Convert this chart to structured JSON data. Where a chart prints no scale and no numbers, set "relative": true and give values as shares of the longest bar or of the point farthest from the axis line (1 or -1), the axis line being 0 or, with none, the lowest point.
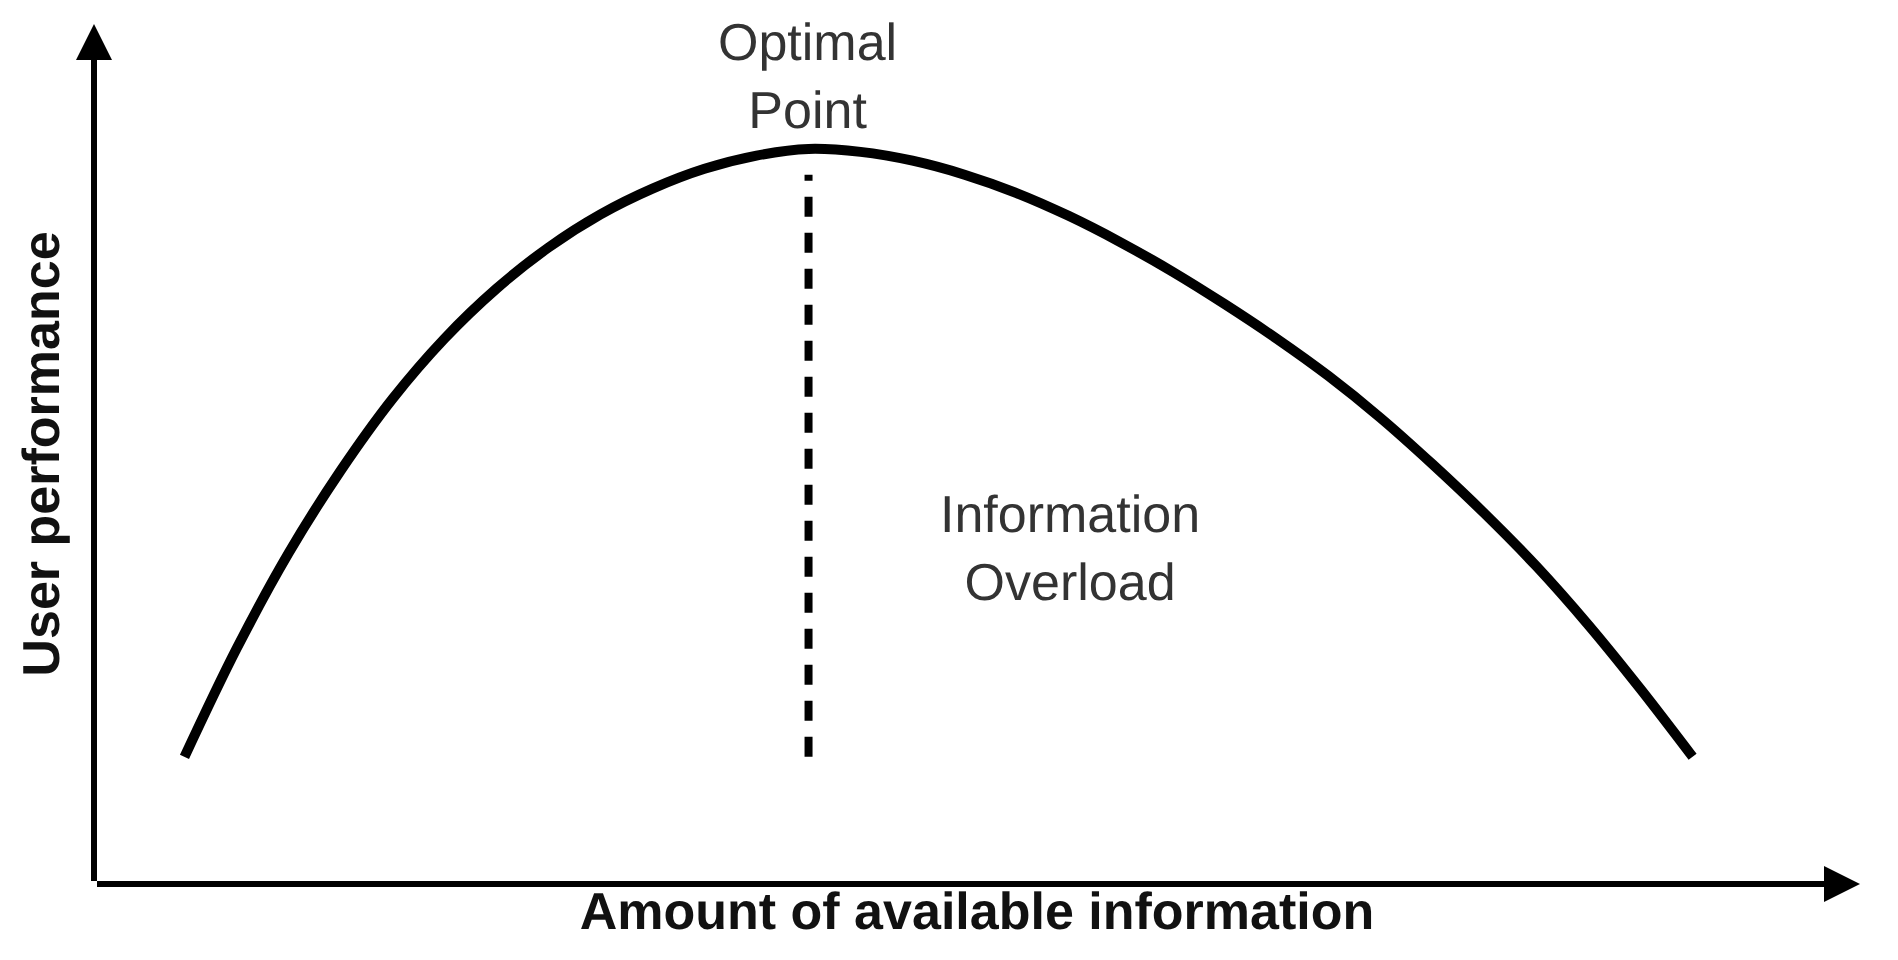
{
  "chart_data": {
    "type": "line",
    "relative": true,
    "xlabel": "Amount of available information",
    "ylabel": "User performance",
    "categories": [
      null,
      null,
      null,
      null,
      null,
      null,
      null,
      null,
      null,
      null,
      null,
      null,
      null,
      null,
      null,
      null,
      null,
      null,
      null,
      null,
      null,
      null,
      null,
      null,
      null,
      null,
      null,
      null,
      null,
      null
    ],
    "values": [
      0.173,
      0.32,
      0.45,
      0.562,
      0.66,
      0.742,
      0.81,
      0.866,
      0.911,
      0.946,
      0.973,
      0.991,
      1,
      0.996,
      0.984,
      0.965,
      0.94,
      0.909,
      0.873,
      0.833,
      0.789,
      0.742,
      0.691,
      0.634,
      0.571,
      0.504,
      0.432,
      0.352,
      0.265,
      0.173
    ],
    "color": "#000000",
    "line_style": "solid",
    "annotations": [
      {
        "text": "Optimal Point",
        "y": 1
      },
      "Information Overload"
    ]
  }
}
